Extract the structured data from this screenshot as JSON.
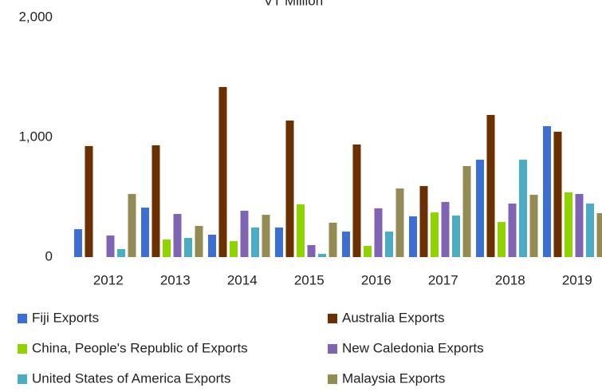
{
  "chart_data": {
    "type": "bar",
    "title": "VT Million",
    "categories": [
      "2012",
      "2013",
      "2014",
      "2015",
      "2016",
      "2017",
      "2018",
      "2019"
    ],
    "series": [
      {
        "name": "Fiji Exports",
        "color": "#3b6fd6",
        "values": [
          233,
          413,
          187,
          247,
          213,
          340,
          813,
          1093
        ]
      },
      {
        "name": "Australia Exports",
        "color": "#6b2f00",
        "values": [
          927,
          933,
          1420,
          1140,
          940,
          593,
          1187,
          1047
        ]
      },
      {
        "name": "China, People's Republic of Exports",
        "color": "#8fd400",
        "values": [
          null,
          147,
          133,
          440,
          93,
          373,
          293,
          540
        ]
      },
      {
        "name": "New Caledonia Exports",
        "color": "#8064b4",
        "values": [
          180,
          360,
          387,
          100,
          407,
          460,
          447,
          527
        ]
      },
      {
        "name": "United States of America Exports",
        "color": "#4bacc6",
        "values": [
          67,
          160,
          247,
          27,
          213,
          347,
          813,
          447
        ]
      },
      {
        "name": "Malaysia Exports",
        "color": "#948a54",
        "values": [
          527,
          260,
          353,
          287,
          573,
          760,
          520,
          367
        ]
      }
    ],
    "ylim": [
      0,
      2000
    ],
    "yticks": [
      0,
      {
        "value": 1000,
        "label": "1,000"
      },
      {
        "value": 2000,
        "label": "2,000"
      }
    ]
  }
}
